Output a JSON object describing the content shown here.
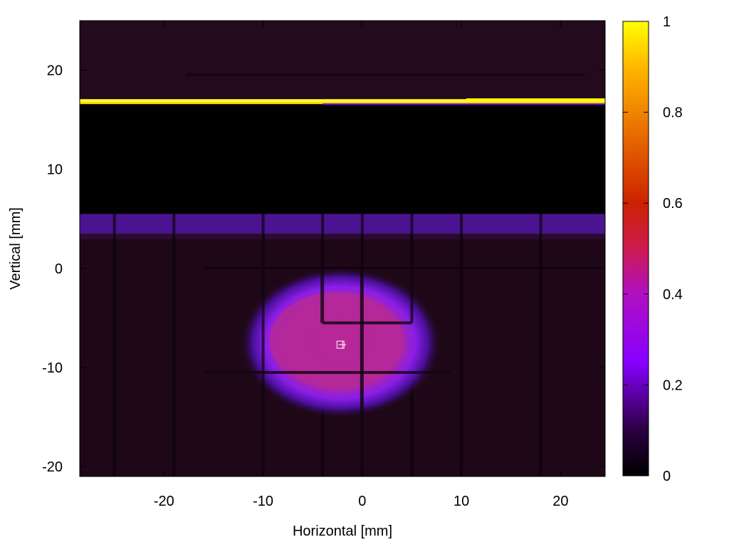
{
  "chart_data": {
    "type": "heatmap",
    "xlabel": "Horizontal [mm]",
    "ylabel": "Vertical [mm]",
    "xlim": [
      -28.5,
      24.5
    ],
    "ylim": [
      -21,
      25
    ],
    "x_ticks": [
      -20,
      -10,
      0,
      10,
      20
    ],
    "y_ticks": [
      -20,
      -10,
      0,
      10,
      20
    ],
    "colorbar": {
      "range": [
        0,
        1
      ],
      "ticks": [
        0,
        0.2,
        0.4,
        0.6,
        0.8,
        1
      ],
      "tick_labels": [
        "0",
        "0.2",
        "0.4",
        "0.6",
        "0.8",
        "1"
      ],
      "colormap": [
        "#000000",
        "#3a005a",
        "#8a00ff",
        "#d0008a",
        "#e81a00",
        "#ff9a00",
        "#ffff00"
      ]
    },
    "features": {
      "background_level": 0.05,
      "bright_strip": {
        "y": 16.8,
        "x_range": [
          -28.5,
          24.5
        ],
        "level": 1.0
      },
      "dark_band": {
        "y_range": [
          5.5,
          16.5
        ],
        "level": 0.0
      },
      "mid_band": {
        "y_range": [
          3.5,
          5.5
        ],
        "level": 0.28
      },
      "beam_spot": {
        "center": [
          -2.2,
          -7.5
        ],
        "level": 0.45
      },
      "grid_lines_x": [
        -25,
        -19,
        -10,
        -4,
        0,
        5,
        10,
        18
      ],
      "grid_lines_y": [
        19.5,
        0,
        -5.5,
        -10.5
      ]
    },
    "marker": {
      "x": -2.2,
      "y": -7.7,
      "symbol": "square-plus"
    }
  }
}
